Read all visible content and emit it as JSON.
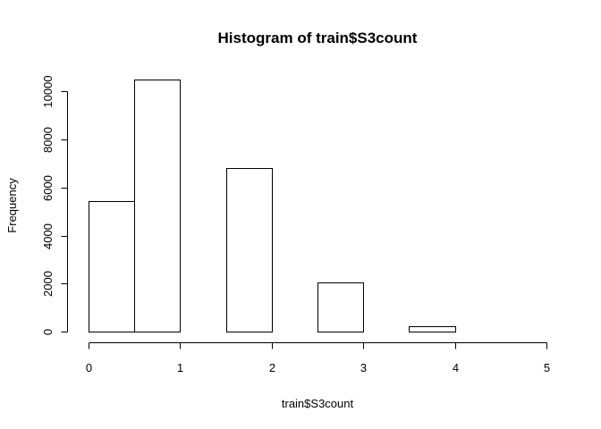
{
  "chart_data": {
    "type": "bar",
    "title": "Histogram of train$S3count",
    "xlabel": "train$S3count",
    "ylabel": "Frequency",
    "bins": [
      {
        "start": 0.0,
        "end": 0.5,
        "value": 5450
      },
      {
        "start": 0.5,
        "end": 1.0,
        "value": 10500
      },
      {
        "start": 1.0,
        "end": 1.5,
        "value": 0
      },
      {
        "start": 1.5,
        "end": 2.0,
        "value": 6800
      },
      {
        "start": 2.0,
        "end": 2.5,
        "value": 0
      },
      {
        "start": 2.5,
        "end": 3.0,
        "value": 2050
      },
      {
        "start": 3.0,
        "end": 3.5,
        "value": 0
      },
      {
        "start": 3.5,
        "end": 4.0,
        "value": 230
      },
      {
        "start": 4.0,
        "end": 4.5,
        "value": 5
      },
      {
        "start": 4.5,
        "end": 5.0,
        "value": 5
      }
    ],
    "xlim": [
      0,
      5
    ],
    "ylim": [
      0,
      10500
    ],
    "x_ticks": [
      "0",
      "1",
      "2",
      "3",
      "4",
      "5"
    ],
    "y_ticks": [
      "0",
      "2000",
      "4000",
      "6000",
      "8000",
      "10000"
    ],
    "grid": false,
    "legend": "none"
  }
}
